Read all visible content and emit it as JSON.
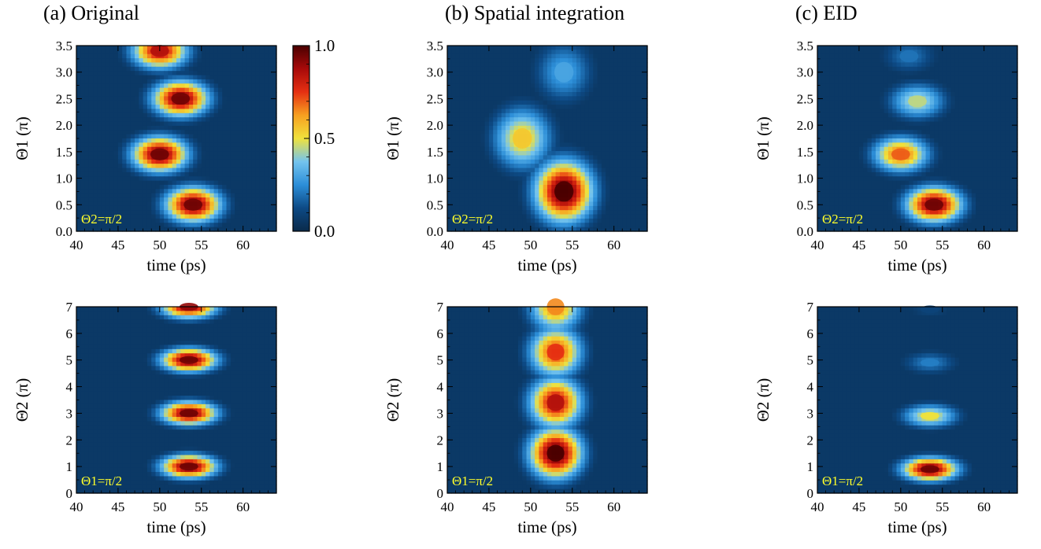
{
  "colors": {
    "colormap": [
      "#0a2a4a",
      "#0d4a85",
      "#2c8ed8",
      "#74c4ee",
      "#f0e23c",
      "#f7a020",
      "#e53012",
      "#a80a0a",
      "#4a0000"
    ],
    "annotation": "#ffff2a"
  },
  "titles": {
    "a": "(a)  Original",
    "b": "(b)  Spatial integration",
    "c": "(c)  EID"
  },
  "chart_data": [
    {
      "id": "a-top",
      "type": "heatmap",
      "title": "(a)  Original",
      "xlabel": "time (ps)",
      "ylabel": "Θ1 (π)",
      "annotation": "Θ2=π/2",
      "xlim": [
        40,
        64
      ],
      "ylim": [
        0,
        3.5
      ],
      "xticks": [
        "40",
        "45",
        "50",
        "55",
        "60"
      ],
      "yticks": [
        "0.0",
        "0.5",
        "1.0",
        "1.5",
        "2.0",
        "2.5",
        "3.0",
        "3.5"
      ],
      "peaks": [
        {
          "t": 54,
          "theta": 0.5,
          "amplitude": 0.95
        },
        {
          "t": 50,
          "theta": 1.45,
          "amplitude": 0.95
        },
        {
          "t": 52.5,
          "theta": 2.5,
          "amplitude": 0.95
        },
        {
          "t": 50,
          "theta": 3.4,
          "amplitude": 0.85
        }
      ]
    },
    {
      "id": "b-top",
      "type": "heatmap",
      "title": "(b)  Spatial integration",
      "xlabel": "time (ps)",
      "ylabel": "Θ1 (π)",
      "annotation": "Θ2=π/2",
      "xlim": [
        40,
        64
      ],
      "ylim": [
        0,
        3.5
      ],
      "xticks": [
        "40",
        "45",
        "50",
        "55",
        "60"
      ],
      "yticks": [
        "0.0",
        "0.5",
        "1.0",
        "1.5",
        "2.0",
        "2.5",
        "3.0",
        "3.5"
      ],
      "peaks": [
        {
          "t": 54,
          "theta": 0.75,
          "amplitude": 1.0
        },
        {
          "t": 49,
          "theta": 1.75,
          "amplitude": 0.55
        },
        {
          "t": 54,
          "theta": 3.0,
          "amplitude": 0.3
        }
      ]
    },
    {
      "id": "c-top",
      "type": "heatmap",
      "title": "(c)  EID",
      "xlabel": "time (ps)",
      "ylabel": "Θ1 (π)",
      "annotation": "Θ2=π/2",
      "xlim": [
        40,
        64
      ],
      "ylim": [
        0,
        3.5
      ],
      "xticks": [
        "40",
        "45",
        "50",
        "55",
        "60"
      ],
      "yticks": [
        "0.0",
        "0.5",
        "1.0",
        "1.5",
        "2.0",
        "2.5",
        "3.0",
        "3.5"
      ],
      "peaks": [
        {
          "t": 54,
          "theta": 0.5,
          "amplitude": 0.95
        },
        {
          "t": 50,
          "theta": 1.45,
          "amplitude": 0.7
        },
        {
          "t": 52,
          "theta": 2.45,
          "amplitude": 0.45
        },
        {
          "t": 51,
          "theta": 3.3,
          "amplitude": 0.2
        }
      ]
    },
    {
      "id": "a-bottom",
      "type": "heatmap",
      "xlabel": "time (ps)",
      "ylabel": "Θ2 (π)",
      "annotation": "Θ1=π/2",
      "xlim": [
        40,
        64
      ],
      "ylim": [
        0,
        7
      ],
      "xticks": [
        "40",
        "45",
        "50",
        "55",
        "60"
      ],
      "yticks": [
        "0",
        "1",
        "2",
        "3",
        "4",
        "5",
        "6",
        "7"
      ],
      "peaks": [
        {
          "t": 53.5,
          "theta": 1,
          "amplitude": 0.95
        },
        {
          "t": 53.5,
          "theta": 3,
          "amplitude": 0.95
        },
        {
          "t": 53.5,
          "theta": 5,
          "amplitude": 0.95
        },
        {
          "t": 53.5,
          "theta": 7,
          "amplitude": 0.9
        }
      ]
    },
    {
      "id": "b-bottom",
      "type": "heatmap",
      "xlabel": "time (ps)",
      "ylabel": "Θ2 (π)",
      "annotation": "Θ1=π/2",
      "xlim": [
        40,
        64
      ],
      "ylim": [
        0,
        7
      ],
      "xticks": [
        "40",
        "45",
        "50",
        "55",
        "60"
      ],
      "yticks": [
        "0",
        "1",
        "2",
        "3",
        "4",
        "5",
        "6",
        "7"
      ],
      "peaks": [
        {
          "t": 53,
          "theta": 1.5,
          "amplitude": 1.0
        },
        {
          "t": 53,
          "theta": 3.4,
          "amplitude": 0.85
        },
        {
          "t": 53,
          "theta": 5.3,
          "amplitude": 0.75
        },
        {
          "t": 53,
          "theta": 7,
          "amplitude": 0.65
        }
      ]
    },
    {
      "id": "c-bottom",
      "type": "heatmap",
      "xlabel": "time (ps)",
      "ylabel": "Θ2 (π)",
      "annotation": "Θ1=π/2",
      "xlim": [
        40,
        64
      ],
      "ylim": [
        0,
        7
      ],
      "xticks": [
        "40",
        "45",
        "50",
        "55",
        "60"
      ],
      "yticks": [
        "0",
        "1",
        "2",
        "3",
        "4",
        "5",
        "6",
        "7"
      ],
      "peaks": [
        {
          "t": 53.5,
          "theta": 0.9,
          "amplitude": 0.95
        },
        {
          "t": 53.5,
          "theta": 2.9,
          "amplitude": 0.5
        },
        {
          "t": 53.5,
          "theta": 4.9,
          "amplitude": 0.22
        },
        {
          "t": 53.5,
          "theta": 6.9,
          "amplitude": 0.1
        }
      ]
    }
  ],
  "colorbar": {
    "min": 0.0,
    "max": 1.0,
    "ticks": [
      "0.0",
      "0.5",
      "1.0"
    ]
  }
}
